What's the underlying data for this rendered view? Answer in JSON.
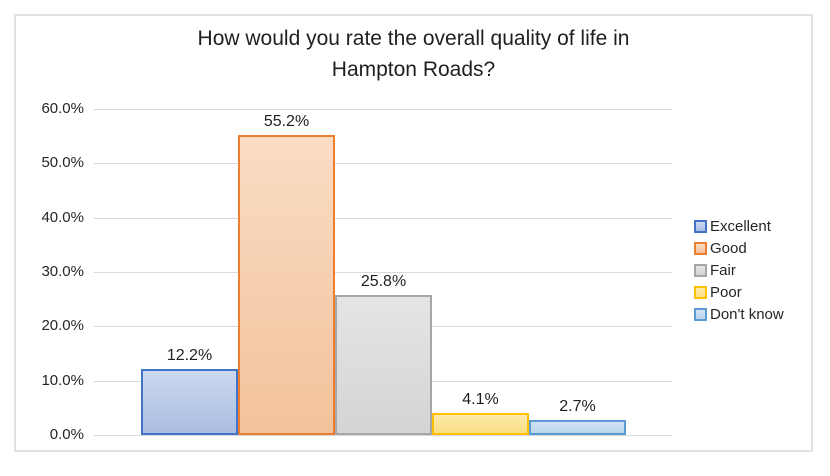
{
  "chart_data": {
    "type": "bar",
    "title": "How would you rate the overall quality of life in Hampton Roads?",
    "title_lines": [
      "How would you rate the overall quality of life in",
      "Hampton Roads?"
    ],
    "categories": [
      "Excellent",
      "Good",
      "Fair",
      "Poor",
      "Don't know"
    ],
    "values": [
      12.2,
      55.2,
      25.8,
      4.1,
      2.7
    ],
    "data_labels": [
      "12.2%",
      "55.2%",
      "25.8%",
      "4.1%",
      "2.7%"
    ],
    "xlabel": "",
    "ylabel": "",
    "ylim": [
      0,
      60
    ],
    "ytick_step": 10,
    "yticks": [
      "0.0%",
      "10.0%",
      "20.0%",
      "30.0%",
      "40.0%",
      "50.0%",
      "60.0%"
    ],
    "grid": true,
    "legend_position": "right",
    "series": [
      {
        "name": "Excellent",
        "value": 12.2,
        "label": "12.2%",
        "fill_top": "#ccd8ef",
        "fill_bottom": "#aabde2",
        "border": "#4472c4"
      },
      {
        "name": "Good",
        "value": 55.2,
        "label": "55.2%",
        "fill_top": "#fadcc3",
        "fill_bottom": "#f2c29c",
        "border": "#ed7d31"
      },
      {
        "name": "Fair",
        "value": 25.8,
        "label": "25.8%",
        "fill_top": "#e5e5e5",
        "fill_bottom": "#d4d4d4",
        "border": "#a6a6a6"
      },
      {
        "name": "Poor",
        "value": 4.1,
        "label": "4.1%",
        "fill_top": "#fdeaa8",
        "fill_bottom": "#fbdf85",
        "border": "#ffc000"
      },
      {
        "name": "Don't know",
        "value": 2.7,
        "label": "2.7%",
        "fill_top": "#d3e2f2",
        "fill_bottom": "#b9d4ec",
        "border": "#5b9bd5"
      }
    ],
    "colors": {
      "gridline": "#d9d9d9",
      "axis_text": "#262626",
      "title_text": "#1f1f1f",
      "frame_border": "#e2e2e2",
      "background": "#ffffff"
    }
  }
}
